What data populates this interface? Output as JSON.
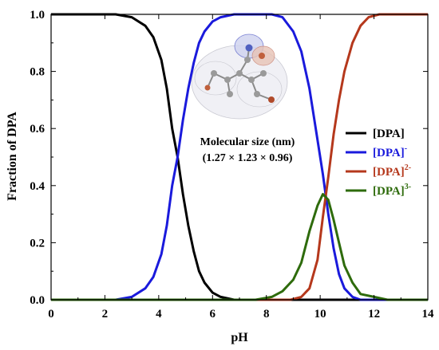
{
  "chart_data": {
    "type": "line",
    "xlabel": "pH",
    "ylabel": "Fraction of DPA",
    "xlim": [
      0,
      14
    ],
    "ylim": [
      0,
      1.0
    ],
    "x_ticks": [
      "0",
      "2",
      "4",
      "6",
      "8",
      "10",
      "12",
      "14"
    ],
    "y_ticks": [
      "0.0",
      "0.2",
      "0.4",
      "0.6",
      "0.8",
      "1.0"
    ],
    "grid": false,
    "legend_position": "right",
    "annotation": {
      "line1": "Molecular size (nm)",
      "line2": "(1.27 × 1.23 × 0.96)"
    },
    "series": [
      {
        "name": "[DPA]",
        "sup": "",
        "color": "#000000",
        "points": [
          [
            0,
            1
          ],
          [
            2.4,
            1
          ],
          [
            3,
            0.99
          ],
          [
            3.5,
            0.96
          ],
          [
            3.8,
            0.92
          ],
          [
            4.1,
            0.84
          ],
          [
            4.3,
            0.74
          ],
          [
            4.5,
            0.6
          ],
          [
            4.7,
            0.5
          ],
          [
            4.9,
            0.37
          ],
          [
            5.1,
            0.26
          ],
          [
            5.3,
            0.17
          ],
          [
            5.5,
            0.1
          ],
          [
            5.7,
            0.06
          ],
          [
            6,
            0.025
          ],
          [
            6.3,
            0.01
          ],
          [
            6.8,
            0
          ],
          [
            14,
            0
          ]
        ]
      },
      {
        "name": "[DPA]",
        "sup": "-",
        "color": "#1a1adc",
        "points": [
          [
            0,
            0
          ],
          [
            2.4,
            0
          ],
          [
            3,
            0.01
          ],
          [
            3.5,
            0.04
          ],
          [
            3.8,
            0.08
          ],
          [
            4.1,
            0.16
          ],
          [
            4.3,
            0.26
          ],
          [
            4.5,
            0.4
          ],
          [
            4.7,
            0.5
          ],
          [
            4.9,
            0.63
          ],
          [
            5.1,
            0.74
          ],
          [
            5.3,
            0.83
          ],
          [
            5.5,
            0.9
          ],
          [
            5.7,
            0.94
          ],
          [
            6,
            0.975
          ],
          [
            6.3,
            0.99
          ],
          [
            6.8,
            1
          ],
          [
            8.2,
            1
          ],
          [
            8.6,
            0.99
          ],
          [
            9,
            0.94
          ],
          [
            9.3,
            0.87
          ],
          [
            9.6,
            0.74
          ],
          [
            9.9,
            0.56
          ],
          [
            10.1,
            0.44
          ],
          [
            10.3,
            0.3
          ],
          [
            10.5,
            0.18
          ],
          [
            10.7,
            0.09
          ],
          [
            10.9,
            0.04
          ],
          [
            11.2,
            0.01
          ],
          [
            11.5,
            0
          ],
          [
            14,
            0
          ]
        ]
      },
      {
        "name": "[DPA]",
        "sup": "2-",
        "color": "#b5381c",
        "points": [
          [
            0,
            0
          ],
          [
            8.9,
            0
          ],
          [
            9.3,
            0.01
          ],
          [
            9.6,
            0.04
          ],
          [
            9.9,
            0.14
          ],
          [
            10.1,
            0.29
          ],
          [
            10.3,
            0.43
          ],
          [
            10.5,
            0.58
          ],
          [
            10.7,
            0.7
          ],
          [
            10.9,
            0.8
          ],
          [
            11.2,
            0.9
          ],
          [
            11.5,
            0.96
          ],
          [
            11.8,
            0.99
          ],
          [
            12.2,
            1
          ],
          [
            14,
            1
          ]
        ]
      },
      {
        "name": "[DPA]",
        "sup": "3-",
        "color": "#2e6b0c",
        "points": [
          [
            0,
            0
          ],
          [
            7.6,
            0
          ],
          [
            8.2,
            0.01
          ],
          [
            8.6,
            0.03
          ],
          [
            9,
            0.07
          ],
          [
            9.3,
            0.13
          ],
          [
            9.6,
            0.24
          ],
          [
            9.9,
            0.33
          ],
          [
            10.1,
            0.37
          ],
          [
            10.3,
            0.35
          ],
          [
            10.5,
            0.28
          ],
          [
            10.7,
            0.2
          ],
          [
            10.9,
            0.12
          ],
          [
            11.2,
            0.06
          ],
          [
            11.5,
            0.02
          ],
          [
            12,
            0.01
          ],
          [
            12.5,
            0
          ],
          [
            14,
            0
          ]
        ]
      }
    ]
  }
}
